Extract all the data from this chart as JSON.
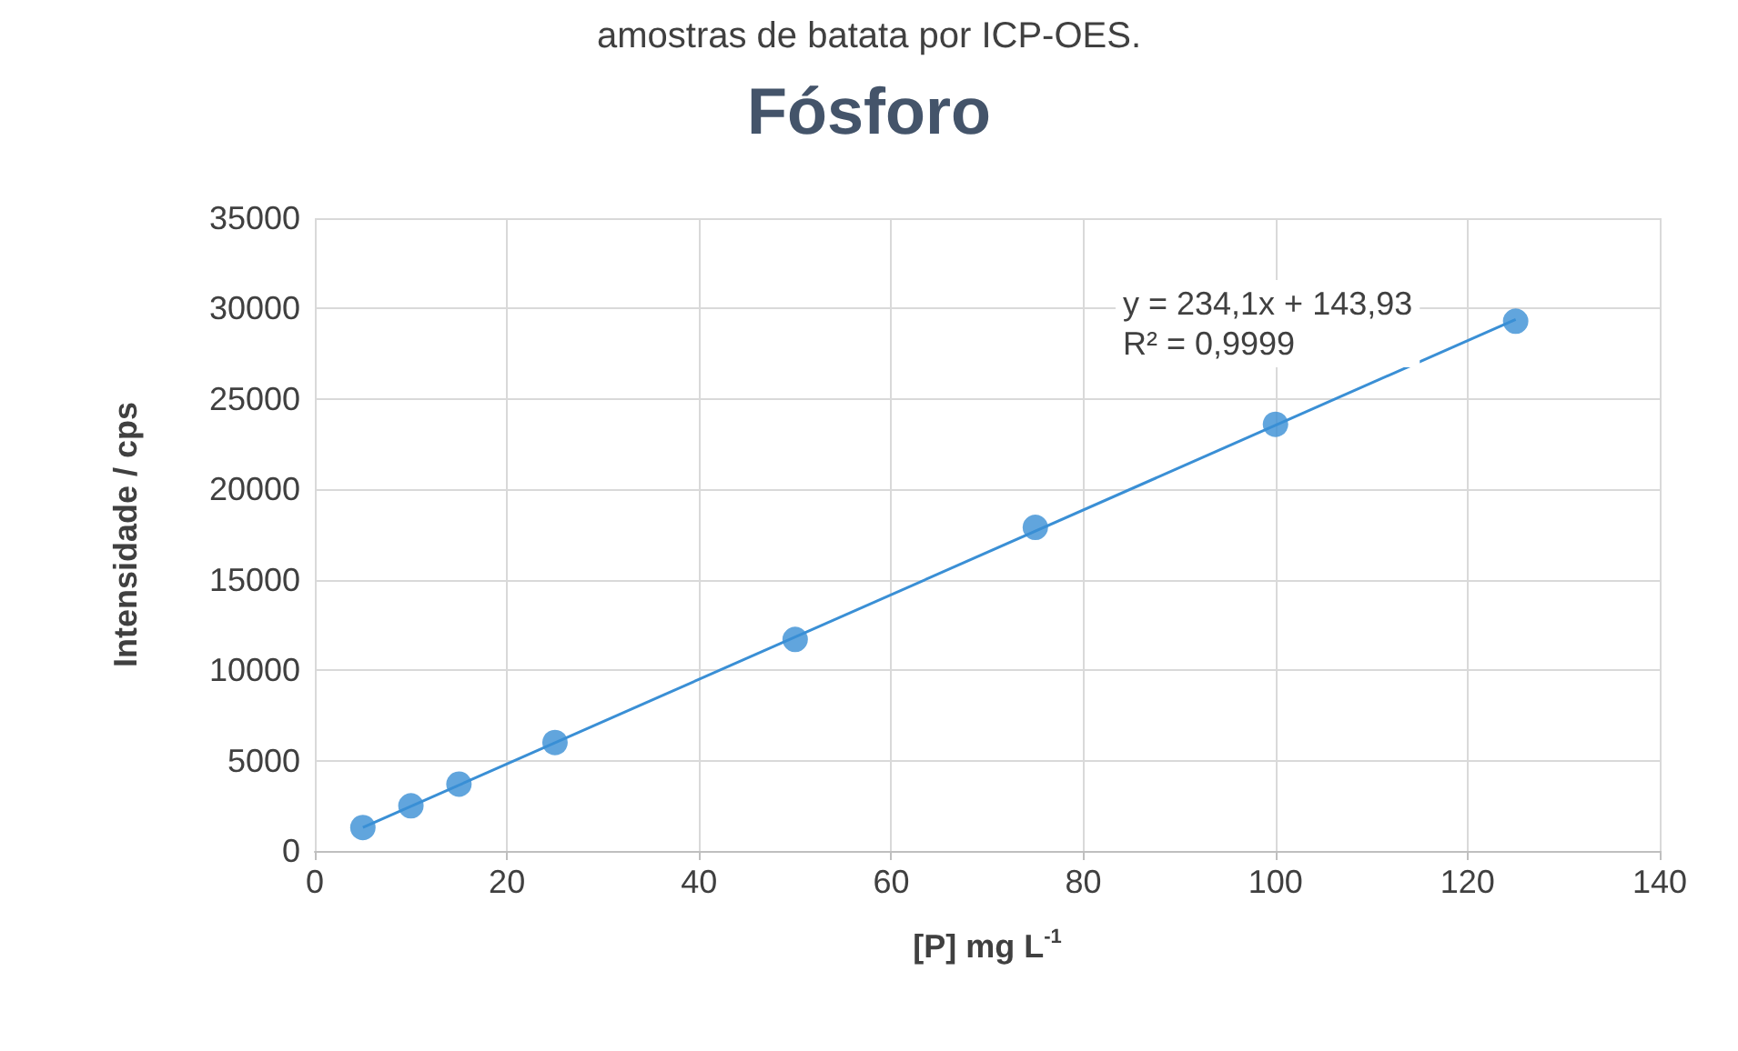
{
  "chart_data": {
    "type": "scatter",
    "title": "Fósforo",
    "xlabel": "[P] mg L$^{-1}$",
    "ylabel": "Intensidade / cps",
    "annotations": [
      "amostras de batata por ICP-OES.",
      "y = 234,1x + 143,93\nR² = 0,9999"
    ],
    "x": [
      5,
      10,
      15,
      25,
      50,
      75,
      100,
      125
    ],
    "series": [
      {
        "color": "#3a8fd5",
        "values": [
          1300,
          2500,
          3700,
          6000,
          11700,
          17900,
          23600,
          29300
        ]
      },
      {
        "type": "line",
        "color": "#3a8fd5",
        "x": [
          5,
          125
        ],
        "values": [
          1300,
          29400
        ],
        "marker": "none"
      }
    ],
    "xlim": [
      0,
      140
    ],
    "xticks": [
      0,
      20,
      40,
      60,
      80,
      100,
      120,
      140
    ],
    "ylim": [
      0,
      35000
    ],
    "yticks": [
      0,
      5000,
      10000,
      15000,
      20000,
      25000,
      30000,
      35000
    ],
    "grid": true,
    "marker": "circle"
  }
}
